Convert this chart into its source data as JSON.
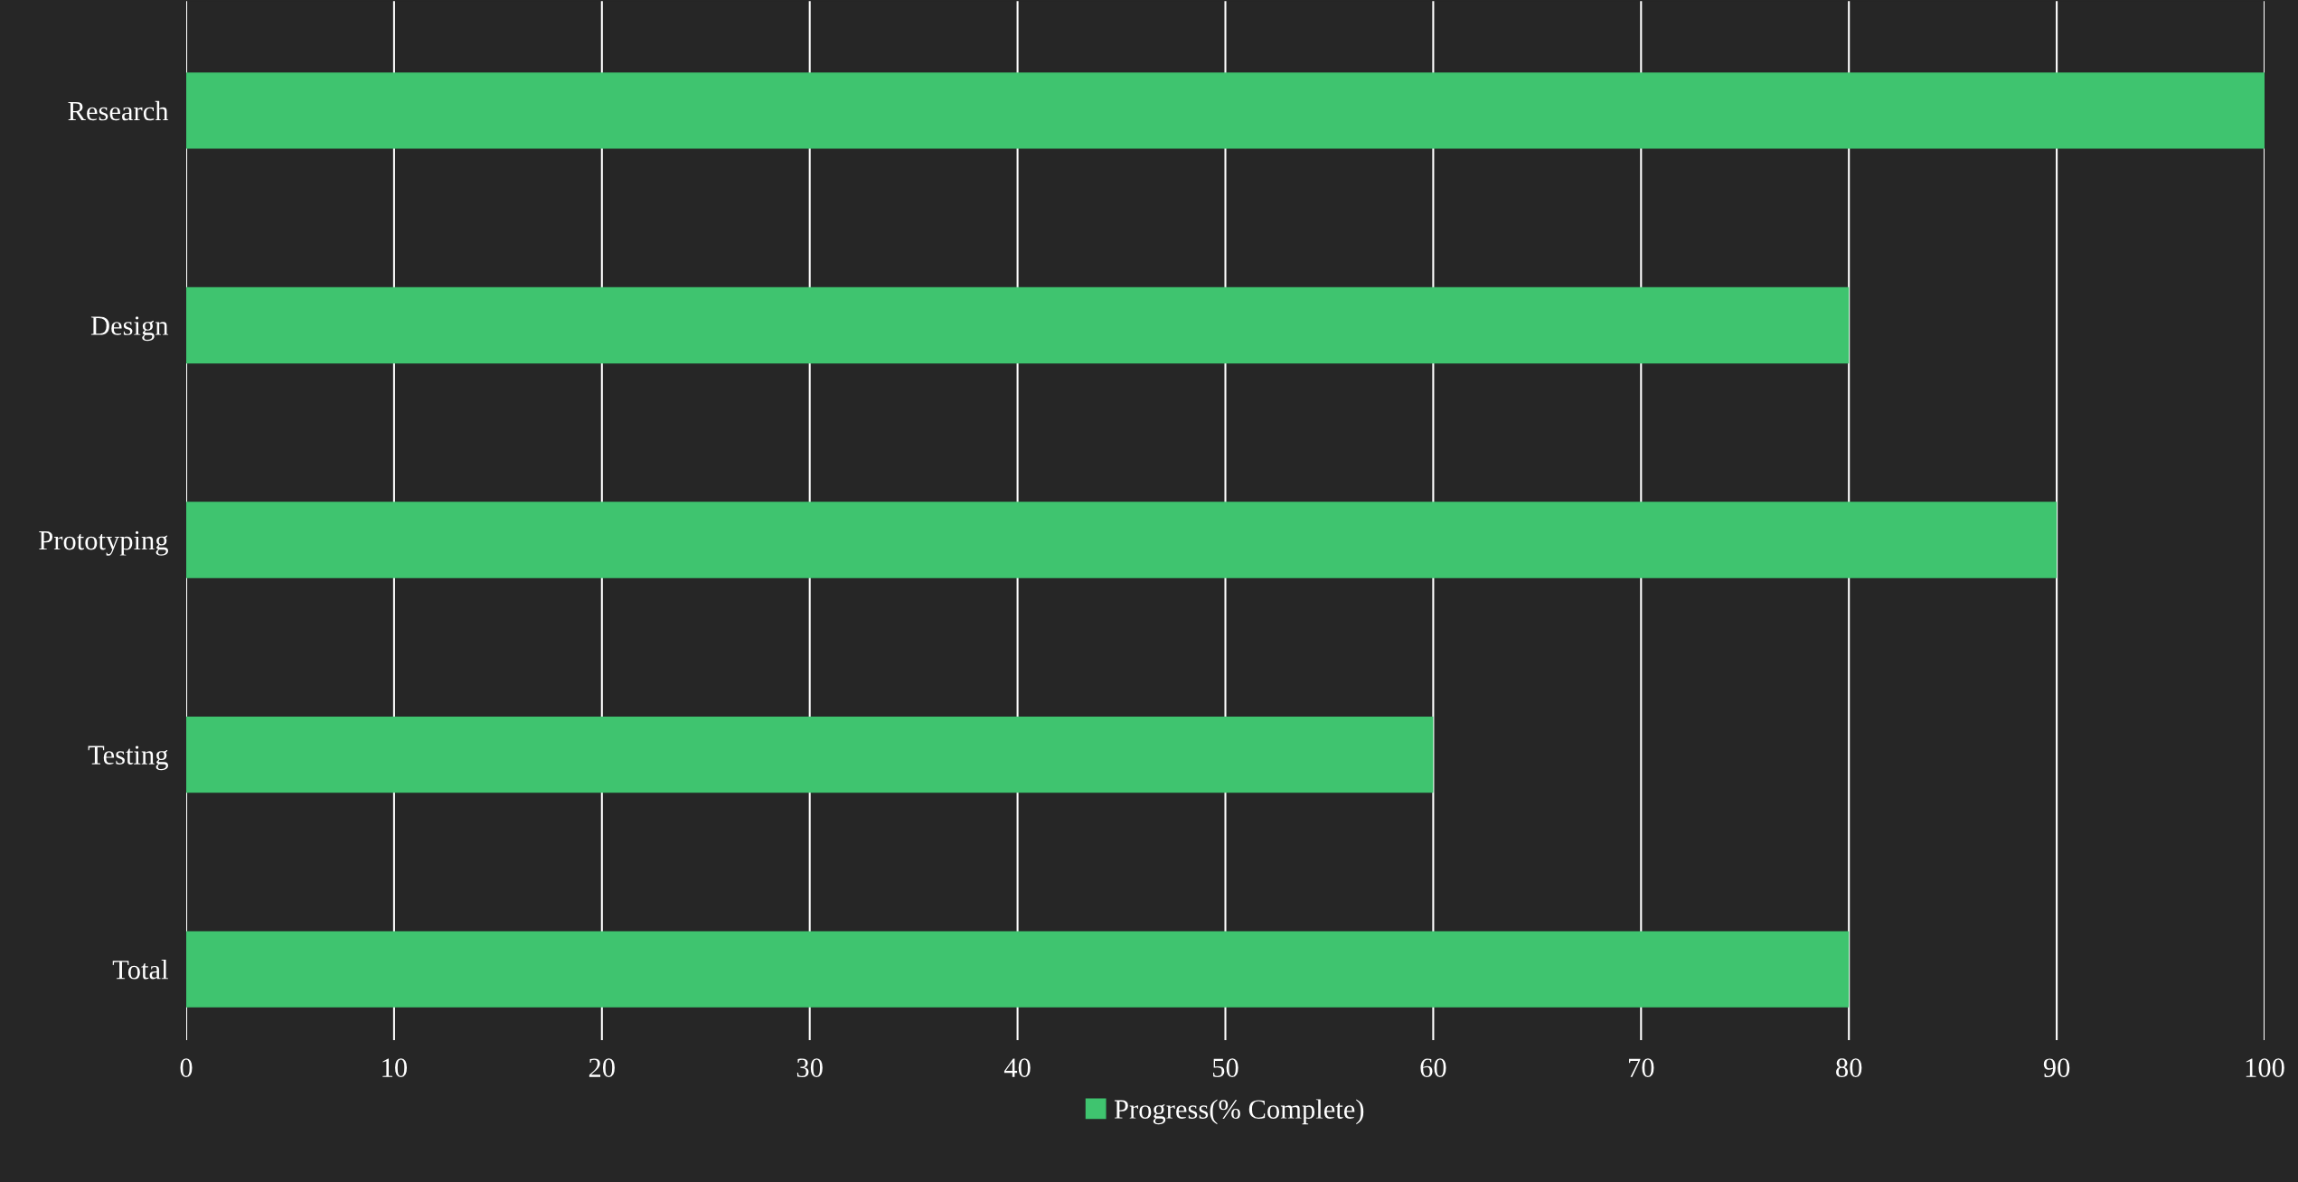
{
  "chart_data": {
    "type": "bar",
    "orientation": "horizontal",
    "categories": [
      "Research",
      "Design",
      "Prototyping",
      "Testing",
      "Total"
    ],
    "series": [
      {
        "name": "Progress(% Complete)",
        "color": "#3fc46f",
        "values": [
          100,
          80,
          90,
          60,
          80
        ]
      }
    ],
    "xlim": [
      0,
      100
    ],
    "xticks": [
      0,
      10,
      20,
      30,
      40,
      50,
      60,
      70,
      80,
      90,
      100
    ],
    "grid": "x",
    "legend": "bottom"
  }
}
